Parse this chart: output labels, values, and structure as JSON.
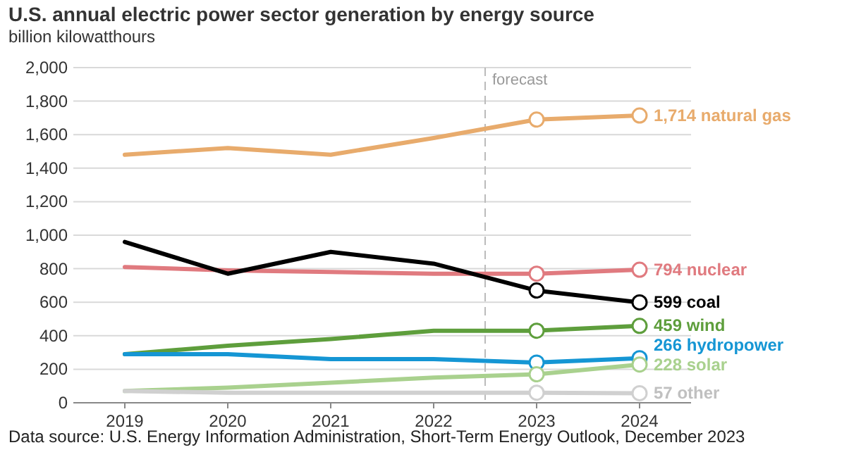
{
  "chart_data": {
    "type": "line",
    "title": "U.S. annual electric power sector generation by energy source",
    "subtitle": "billion kilowatthours",
    "x": [
      2019,
      2020,
      2021,
      2022,
      2023,
      2024
    ],
    "xlim": [
      2018.5,
      2024.5
    ],
    "xticks": [
      2019,
      2020,
      2021,
      2022,
      2023,
      2024
    ],
    "series": [
      {
        "name": "natural gas",
        "color": "#e8ab6c",
        "values": [
          1480,
          1520,
          1480,
          1580,
          1690,
          1714
        ],
        "value_labels": [
          null,
          null,
          null,
          null,
          null,
          "1,714"
        ]
      },
      {
        "name": "nuclear",
        "color": "#e07a7f",
        "values": [
          810,
          790,
          780,
          770,
          770,
          794
        ],
        "value_labels": [
          null,
          null,
          null,
          null,
          null,
          "794"
        ]
      },
      {
        "name": "coal",
        "color": "#000000",
        "values": [
          960,
          770,
          900,
          830,
          670,
          599
        ],
        "value_labels": [
          null,
          null,
          null,
          null,
          null,
          "599"
        ]
      },
      {
        "name": "wind",
        "color": "#5e9e3c",
        "values": [
          290,
          340,
          380,
          430,
          430,
          459
        ],
        "value_labels": [
          null,
          null,
          null,
          null,
          null,
          "459"
        ]
      },
      {
        "name": "hydropower",
        "color": "#1596d4",
        "values": [
          290,
          290,
          260,
          260,
          240,
          266
        ],
        "value_labels": [
          null,
          null,
          null,
          null,
          null,
          "266"
        ]
      },
      {
        "name": "solar",
        "color": "#a9d18e",
        "values": [
          70,
          90,
          120,
          150,
          170,
          228
        ],
        "value_labels": [
          null,
          null,
          null,
          null,
          null,
          "228"
        ]
      },
      {
        "name": "other",
        "color": "#d0d0d0",
        "values": [
          70,
          60,
          60,
          60,
          60,
          57
        ],
        "value_labels": [
          null,
          null,
          null,
          null,
          null,
          "57"
        ]
      }
    ],
    "ylim": [
      0,
      2000
    ],
    "yticks": [
      0,
      {
        "value": 200,
        "label": "200"
      },
      {
        "value": 400,
        "label": "400"
      },
      {
        "value": 600,
        "label": "600"
      },
      {
        "value": 800,
        "label": "800"
      },
      {
        "value": 1000,
        "label": "1,000"
      },
      {
        "value": 1200,
        "label": "1,200"
      },
      {
        "value": 1400,
        "label": "1,400"
      },
      {
        "value": 1600,
        "label": "1,600"
      },
      {
        "value": 1800,
        "label": "1,800"
      },
      {
        "value": 2000,
        "label": "2,000"
      }
    ],
    "grid": "y",
    "line_style": "solid",
    "ref_lines": [
      {
        "axis": "x",
        "value": 2022.5,
        "label": "forecast",
        "color": "#bbbbbb",
        "line_style": "dashed"
      }
    ],
    "annotations": [
      "Data source: U.S. Energy Information Administration, Short-Term Energy Outlook, December 2023"
    ]
  }
}
